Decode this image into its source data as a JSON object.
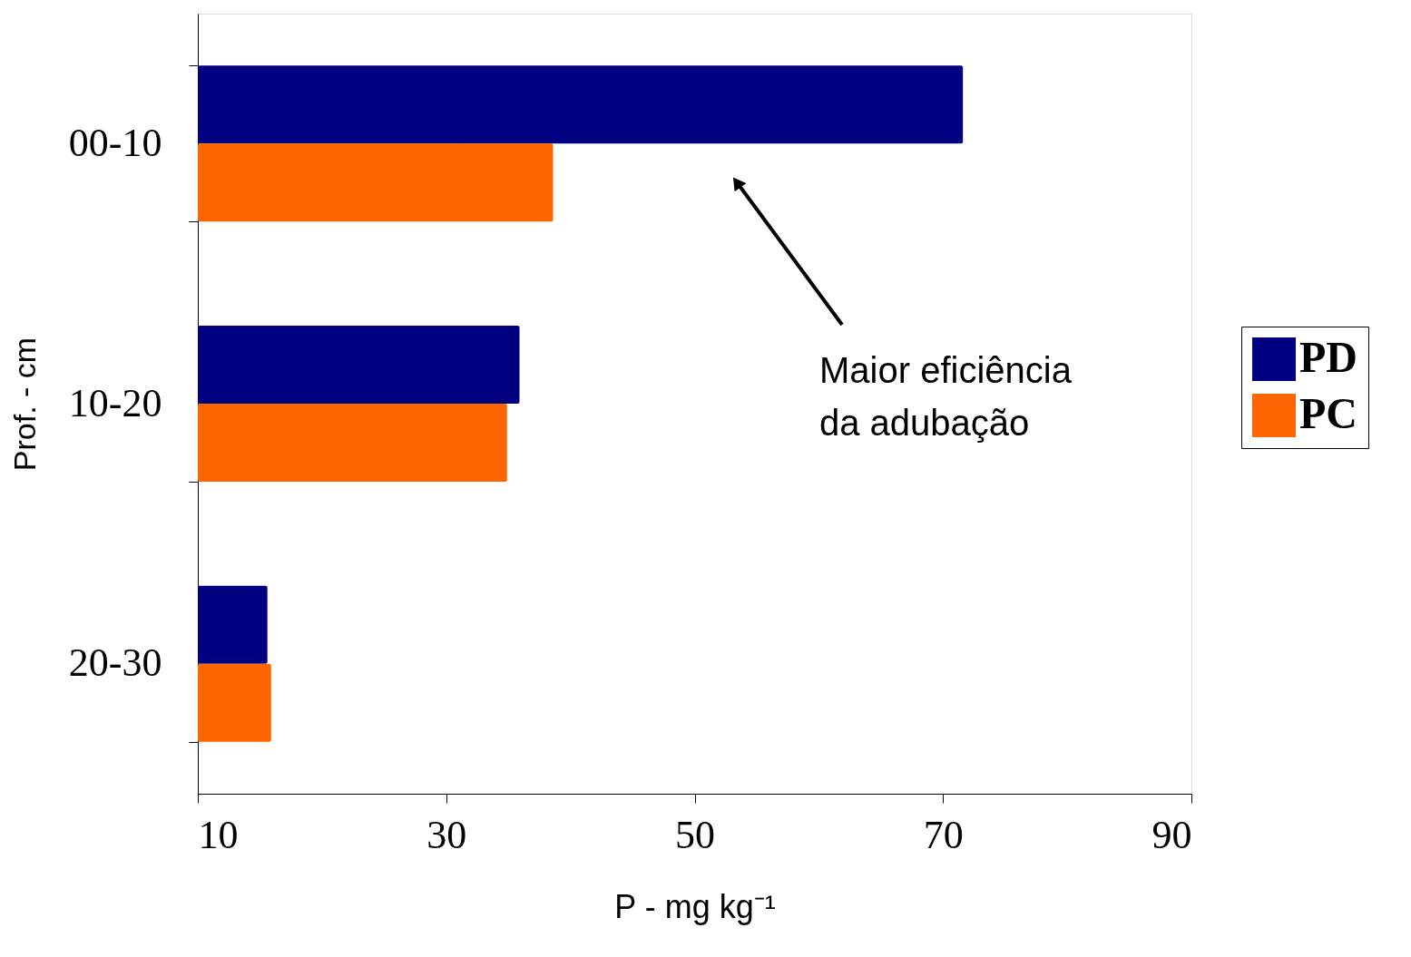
{
  "chart_data": {
    "type": "bar",
    "orientation": "horizontal",
    "categories": [
      "00-10",
      "10-20",
      "20-30"
    ],
    "series": [
      {
        "name": "PD",
        "color": "#000080",
        "values": [
          71.6,
          35.9,
          15.6
        ]
      },
      {
        "name": "PC",
        "color": "#ff6600",
        "values": [
          38.6,
          34.9,
          15.9
        ]
      }
    ],
    "xlabel": "P - mg kg⁻¹",
    "ylabel": "Prof. - cm",
    "xlim": [
      10,
      90
    ],
    "xticks": [
      10,
      30,
      50,
      70,
      90
    ],
    "annotations": [
      "Maior eficiência\nda adubação"
    ],
    "legend": "right",
    "grid": false
  }
}
